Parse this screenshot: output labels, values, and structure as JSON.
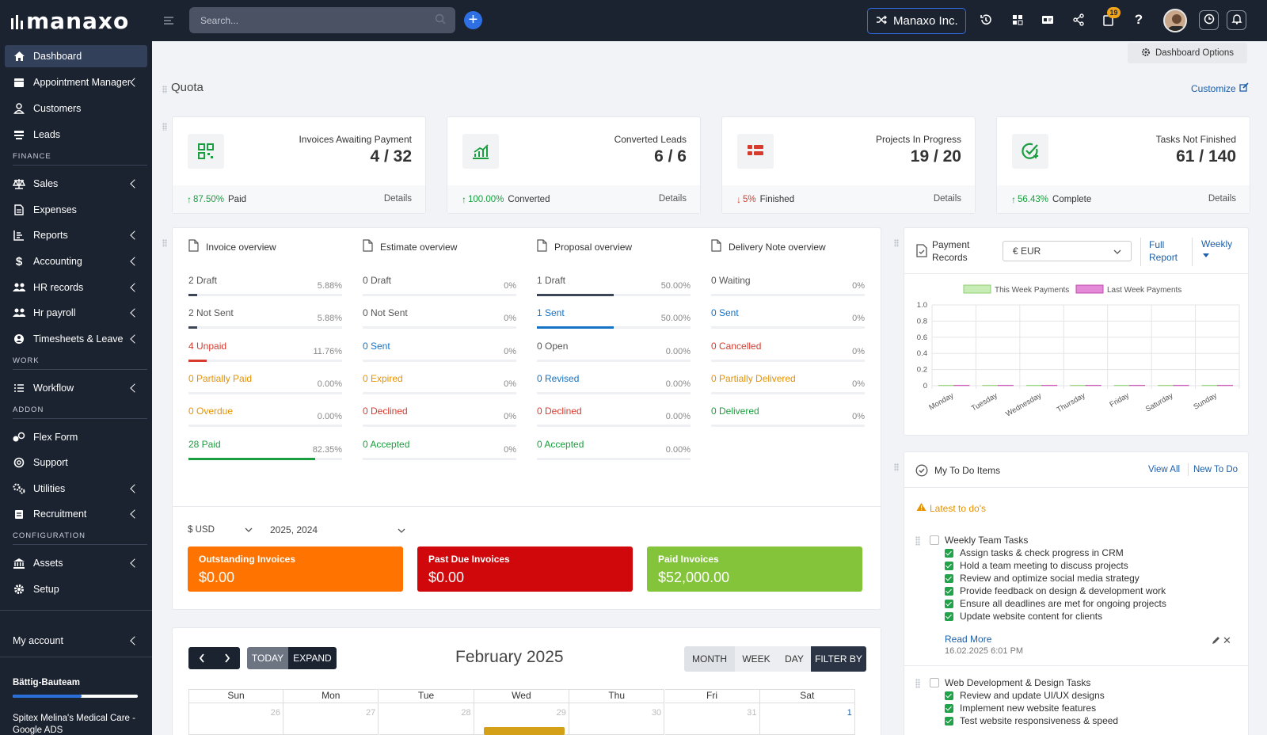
{
  "brand": {
    "name": "manaxo"
  },
  "topbar": {
    "search_placeholder": "Search...",
    "company_button": "Manaxo Inc.",
    "notification_count": "19"
  },
  "sidebar": {
    "items": [
      {
        "label": "Dashboard",
        "icon": "home-icon"
      },
      {
        "label": "Appointment Manager",
        "icon": "calendar-icon"
      },
      {
        "label": "Customers",
        "icon": "user-icon"
      },
      {
        "label": "Leads",
        "icon": "leads-icon"
      },
      {
        "label": "Sales",
        "icon": "scale-icon"
      },
      {
        "label": "Expenses",
        "icon": "file-icon"
      },
      {
        "label": "Reports",
        "icon": "chart-icon"
      },
      {
        "label": "Accounting",
        "icon": "dollar-icon"
      },
      {
        "label": "HR records",
        "icon": "users-icon"
      },
      {
        "label": "Hr payroll",
        "icon": "users-icon"
      },
      {
        "label": "Timesheets & Leave",
        "icon": "clock-user-icon"
      },
      {
        "label": "Workflow",
        "icon": "list-icon"
      },
      {
        "label": "Flex Form",
        "icon": "form-icon"
      },
      {
        "label": "Support",
        "icon": "lifebuoy-icon"
      },
      {
        "label": "Utilities",
        "icon": "gears-icon"
      },
      {
        "label": "Recruitment",
        "icon": "clipboard-icon"
      },
      {
        "label": "Assets",
        "icon": "bank-icon"
      },
      {
        "label": "Setup",
        "icon": "gear-icon"
      }
    ],
    "sections": [
      "FINANCE",
      "WORK",
      "ADDON",
      "CONFIGURATION"
    ],
    "my_account": "My account",
    "team_name": "Bättig-Bauteam",
    "team_progress": 0.55,
    "project_name": "Spitex Melina's Medical Care - Google ADS"
  },
  "main": {
    "dashboard_options": "Dashboard Options",
    "quota_title": "Quota",
    "customize": "Customize",
    "stats": [
      {
        "title": "Invoices Awaiting Payment",
        "value": "4 / 32",
        "pct": "87.50%",
        "pct_label": "Paid",
        "trend": "up",
        "details": "Details",
        "icon": "qr-icon"
      },
      {
        "title": "Converted Leads",
        "value": "6 / 6",
        "pct": "100.00%",
        "pct_label": "Converted",
        "trend": "up",
        "details": "Details",
        "icon": "growth-chart-icon"
      },
      {
        "title": "Projects In Progress",
        "value": "19 / 20",
        "pct": "5%",
        "pct_label": "Finished",
        "trend": "down",
        "details": "Details",
        "icon": "grid-list-icon"
      },
      {
        "title": "Tasks Not Finished",
        "value": "61 / 140",
        "pct": "56.43%",
        "pct_label": "Complete",
        "trend": "up",
        "details": "Details",
        "icon": "check-circle-icon"
      }
    ],
    "overviews": [
      {
        "title": "Invoice overview",
        "rows": [
          {
            "label": "2 Draft",
            "pct": "5.88%",
            "color": "#555",
            "fill": 0.0588
          },
          {
            "label": "2 Not Sent",
            "pct": "5.88%",
            "color": "#555",
            "fill": 0.0588
          },
          {
            "label": "4 Unpaid",
            "pct": "11.76%",
            "color": "#d63b2e",
            "fill": 0.1176
          },
          {
            "label": "0 Partially Paid",
            "pct": "0.00%",
            "color": "#e69200",
            "fill": 0
          },
          {
            "label": "0 Overdue",
            "pct": "0.00%",
            "color": "#e69200",
            "fill": 0
          },
          {
            "label": "28 Paid",
            "pct": "82.35%",
            "color": "#1a9e3f",
            "fill": 0.8235
          }
        ]
      },
      {
        "title": "Estimate overview",
        "rows": [
          {
            "label": "0 Draft",
            "pct": "0%",
            "color": "#555",
            "fill": 0
          },
          {
            "label": "0 Not Sent",
            "pct": "0%",
            "color": "#555",
            "fill": 0
          },
          {
            "label": "0 Sent",
            "pct": "0%",
            "color": "#1672c4",
            "fill": 0
          },
          {
            "label": "0 Expired",
            "pct": "0%",
            "color": "#e69200",
            "fill": 0
          },
          {
            "label": "0 Declined",
            "pct": "0%",
            "color": "#d63b2e",
            "fill": 0
          },
          {
            "label": "0 Accepted",
            "pct": "0%",
            "color": "#1a9e3f",
            "fill": 0
          }
        ]
      },
      {
        "title": "Proposal overview",
        "rows": [
          {
            "label": "1 Draft",
            "pct": "50.00%",
            "color": "#555",
            "fill": 0.5
          },
          {
            "label": "1 Sent",
            "pct": "50.00%",
            "color": "#1672c4",
            "fill": 0.5
          },
          {
            "label": "0 Open",
            "pct": "0.00%",
            "color": "#555",
            "fill": 0
          },
          {
            "label": "0 Revised",
            "pct": "0.00%",
            "color": "#1672c4",
            "fill": 0
          },
          {
            "label": "0 Declined",
            "pct": "0.00%",
            "color": "#d63b2e",
            "fill": 0
          },
          {
            "label": "0 Accepted",
            "pct": "0.00%",
            "color": "#1a9e3f",
            "fill": 0
          }
        ]
      },
      {
        "title": "Delivery Note overview",
        "rows": [
          {
            "label": "0 Waiting",
            "pct": "0%",
            "color": "#555",
            "fill": 0
          },
          {
            "label": "0 Sent",
            "pct": "0%",
            "color": "#1672c4",
            "fill": 0
          },
          {
            "label": "0 Cancelled",
            "pct": "0%",
            "color": "#d63b2e",
            "fill": 0
          },
          {
            "label": "0 Partially Delivered",
            "pct": "0%",
            "color": "#e69200",
            "fill": 0
          },
          {
            "label": "0 Delivered",
            "pct": "0%",
            "color": "#1a9e3f",
            "fill": 0
          }
        ]
      }
    ],
    "currency_select": "$ USD",
    "year_select": "2025, 2024",
    "totals": [
      {
        "title": "Outstanding Invoices",
        "value": "$0.00",
        "color": "#ff7300"
      },
      {
        "title": "Past Due Invoices",
        "value": "$0.00",
        "color": "#d0080b"
      },
      {
        "title": "Paid Invoices",
        "value": "$52,000.00",
        "color": "#84c43a"
      }
    ],
    "calendar": {
      "today": "TODAY",
      "expand": "EXPAND",
      "title": "February 2025",
      "views": [
        "MONTH",
        "WEEK",
        "DAY"
      ],
      "filter": "FILTER BY",
      "weekdays": [
        "Sun",
        "Mon",
        "Tue",
        "Wed",
        "Thu",
        "Fri",
        "Sat"
      ],
      "first_week": [
        "26",
        "27",
        "28",
        "29",
        "30",
        "31",
        "1"
      ]
    }
  },
  "payments": {
    "title": "Payment Records",
    "currency": "€ EUR",
    "full_report": "Full Report",
    "period": "Weekly",
    "chart_data": {
      "type": "bar",
      "categories": [
        "Monday",
        "Tuesday",
        "Wednesday",
        "Thursday",
        "Friday",
        "Saturday",
        "Sunday"
      ],
      "series": [
        {
          "name": "This Week Payments",
          "values": [
            0,
            0,
            0,
            0,
            0,
            0,
            0
          ],
          "color": "#c7ecb6"
        },
        {
          "name": "Last Week Payments",
          "values": [
            0,
            0,
            0,
            0,
            0,
            0,
            0
          ],
          "color": "#e58ad8"
        }
      ],
      "ylim": [
        0,
        1.0
      ],
      "yticks": [
        "1.0",
        "0.8",
        "0.6",
        "0.4",
        "0.2",
        "0"
      ],
      "legend": "top",
      "grid": true
    }
  },
  "todo": {
    "title": "My To Do Items",
    "view_all": "View All",
    "new_todo": "New To Do",
    "latest": "Latest to do's",
    "groups": [
      {
        "title": "Weekly Team Tasks",
        "items": [
          "Assign tasks & check progress in CRM",
          "Hold a team meeting to discuss projects",
          "Review and optimize social media strategy",
          "Provide feedback on design & development work",
          "Ensure all deadlines are met for ongoing projects",
          "Update website content for clients"
        ],
        "read_more": "Read More",
        "date": "16.02.2025 6:01 PM"
      },
      {
        "title": "Web Development & Design Tasks",
        "items": [
          "Review and update UI/UX designs",
          "Implement new website features",
          "Test website responsiveness & speed"
        ]
      }
    ]
  }
}
